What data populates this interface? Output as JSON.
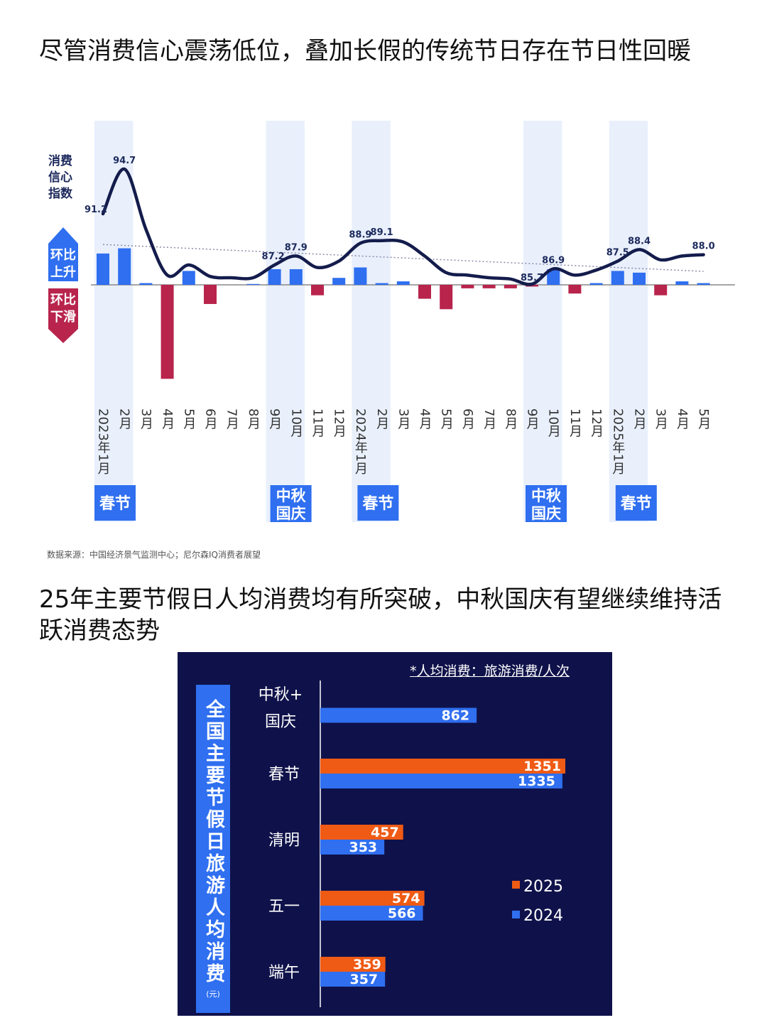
{
  "headings": {
    "h1": "尽管消费信心震荡低位，叠加长假的传统节日存在节日性回暖",
    "h2": "25年主要节假日人均消费均有所突破，中秋国庆有望继续维持活跃消费态势"
  },
  "source": "数据来源：中国经济景气监测中心；尼尔森IQ消费者展望",
  "colors": {
    "line": "#141c4c",
    "up": "#2f6ff0",
    "down": "#b8244c",
    "band": "#e9f0fc",
    "bar2025": "#ef5a14",
    "bar2024": "#2f6ff0",
    "panel": "#0f124a"
  },
  "chart_data": [
    {
      "type": "line",
      "title": "",
      "ylabel": "消费信心指数",
      "months": [
        "2023年1月",
        "2月",
        "3月",
        "4月",
        "5月",
        "6月",
        "7月",
        "8月",
        "9月",
        "10月",
        "11月",
        "12月",
        "2024年1月",
        "2月",
        "3月",
        "4月",
        "5月",
        "6月",
        "7月",
        "8月",
        "9月",
        "10月",
        "11月",
        "12月",
        "2025年1月",
        "2月",
        "3月",
        "4月",
        "5月"
      ],
      "series": [
        {
          "values": [
            91.2,
            94.7,
            90.0,
            86.4,
            87.2,
            86.3,
            86.2,
            86.2,
            87.2,
            87.9,
            87.0,
            87.5,
            88.9,
            89.1,
            89.0,
            87.9,
            86.6,
            86.4,
            86.2,
            86.1,
            85.7,
            86.9,
            86.4,
            86.8,
            87.5,
            88.4,
            87.6,
            87.9,
            88.0
          ],
          "point_labels": {
            "0": "91.2",
            "1": "94.7",
            "8": "87.2",
            "9": "87.9",
            "12": "88.9",
            "13": "89.1",
            "20": "85.7",
            "21": "86.9",
            "24": "87.5",
            "25": "88.4",
            "28": "88.0"
          }
        }
      ],
      "trendline": [
        88.8,
        86.7
      ],
      "mom_change": {
        "legend_up": "环比上升",
        "legend_down": "环比下滑",
        "values": [
          1.8,
          2.1,
          0.1,
          -5.4,
          0.8,
          -1.1,
          0.0,
          0.05,
          0.9,
          0.9,
          -0.6,
          0.4,
          1.0,
          0.1,
          0.2,
          -0.8,
          -1.4,
          -0.2,
          -0.2,
          -0.2,
          -0.1,
          0.9,
          -0.5,
          0.1,
          0.8,
          0.7,
          -0.6,
          0.2,
          0.1
        ]
      },
      "holidays": [
        {
          "label": "春节",
          "index": 0
        },
        {
          "label": "中秋国庆",
          "index": 9
        },
        {
          "label": "春节",
          "index": 12
        },
        {
          "label": "中秋国庆",
          "index": 21
        },
        {
          "label": "春节",
          "index": 25
        }
      ]
    },
    {
      "type": "bar",
      "title": "全国主要节假日旅游人均消费",
      "unit": "(元)",
      "note": "*人均消费：旅游消费/人次",
      "categories": [
        "中秋+国庆",
        "春节",
        "清明",
        "五一",
        "端午"
      ],
      "series": [
        {
          "name": "2025",
          "values": [
            null,
            1351,
            457,
            574,
            359
          ]
        },
        {
          "name": "2024",
          "values": [
            862,
            1335,
            353,
            566,
            357
          ]
        }
      ],
      "xlim": [
        0,
        1400
      ]
    }
  ]
}
